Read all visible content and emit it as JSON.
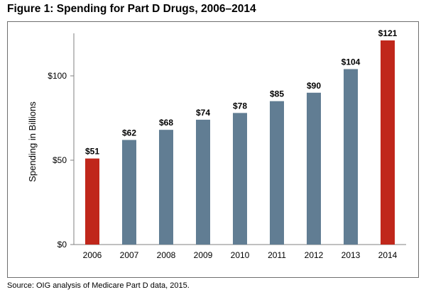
{
  "figure": {
    "title": "Figure 1:  Spending for Part D Drugs, 2006–2014",
    "source": "Source:  OIG analysis of Medicare Part D data, 2015."
  },
  "colors": {
    "bar_default": "#617d93",
    "bar_highlight": "#c0271b",
    "axis": "#808080"
  },
  "chart_data": {
    "type": "bar",
    "title": "Spending for Part D Drugs, 2006–2014",
    "xlabel": "",
    "ylabel": "Spending in Billions",
    "categories": [
      "2006",
      "2007",
      "2008",
      "2009",
      "2010",
      "2011",
      "2012",
      "2013",
      "2014"
    ],
    "values": [
      51,
      62,
      68,
      74,
      78,
      85,
      90,
      104,
      121
    ],
    "data_labels": [
      "$51",
      "$62",
      "$68",
      "$74",
      "$78",
      "$85",
      "$90",
      "$104",
      "$121"
    ],
    "highlighted": [
      "2006",
      "2014"
    ],
    "ylim": [
      0,
      125
    ],
    "yticks": [
      0,
      50,
      100
    ],
    "ytick_labels": [
      "$0",
      "$50",
      "$100"
    ],
    "grid": false
  }
}
